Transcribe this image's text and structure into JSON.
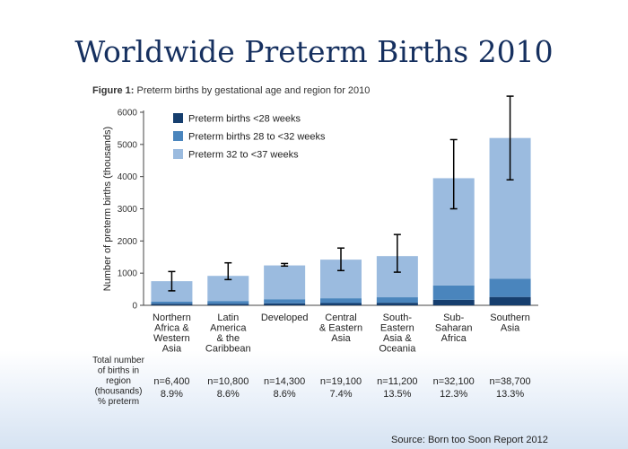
{
  "slide": {
    "title": "Worldwide Preterm Births 2010",
    "caption_prefix": "Figure 1:",
    "caption_text": " Preterm births by gestational age and region for 2010",
    "source": "Source: Born too Soon Report 2012"
  },
  "colors": {
    "dark": "#163e6e",
    "mid": "#4a85bd",
    "light": "#9bbbdf"
  },
  "chart_data": {
    "type": "bar",
    "stacked": true,
    "ylabel": "Number of preterm births (thousands)",
    "ylim": [
      0,
      6000
    ],
    "yticks": [
      0,
      1000,
      2000,
      3000,
      4000,
      5000,
      6000
    ],
    "grid": false,
    "legend_position": "top-left",
    "categories": [
      [
        "Northern",
        "Africa &",
        "Western",
        "Asia"
      ],
      [
        "Latin",
        "America",
        "& the",
        "Caribbean"
      ],
      [
        "Developed"
      ],
      [
        "Central",
        "& Eastern",
        "Asia"
      ],
      [
        "South-",
        "Eastern",
        "Asia &",
        "Oceania"
      ],
      [
        "Sub-",
        "Saharan",
        "Africa"
      ],
      [
        "Southern",
        "Asia"
      ]
    ],
    "series": [
      {
        "name": "Preterm births <28 weeks",
        "color_key": "dark",
        "values": [
          50,
          45,
          60,
          70,
          80,
          170,
          260
        ]
      },
      {
        "name": "Preterm births 28 to <32 weeks",
        "color_key": "mid",
        "values": [
          70,
          90,
          130,
          150,
          170,
          450,
          570
        ]
      },
      {
        "name": "Preterm 32 to <37 weeks",
        "color_key": "light",
        "values": [
          630,
          780,
          1050,
          1200,
          1280,
          3330,
          4370
        ]
      }
    ],
    "error_bars": [
      {
        "low": 450,
        "high": 1050
      },
      {
        "low": 800,
        "high": 1320
      },
      {
        "low": 1220,
        "high": 1300
      },
      {
        "low": 1080,
        "high": 1780
      },
      {
        "low": 1030,
        "high": 2200
      },
      {
        "low": 3000,
        "high": 5150
      },
      {
        "low": 3900,
        "high": 6500
      }
    ],
    "table": {
      "row_label": [
        "Total number",
        "of births in",
        "region",
        "(thousands)",
        "% preterm"
      ],
      "n_values": [
        "n=6,400",
        "n=10,800",
        "n=14,300",
        "n=19,100",
        "n=11,200",
        "n=32,100",
        "n=38,700"
      ],
      "percent_preterm": [
        "8.9%",
        "8.6%",
        "8.6%",
        "7.4%",
        "13.5%",
        "12.3%",
        "13.3%"
      ]
    }
  }
}
